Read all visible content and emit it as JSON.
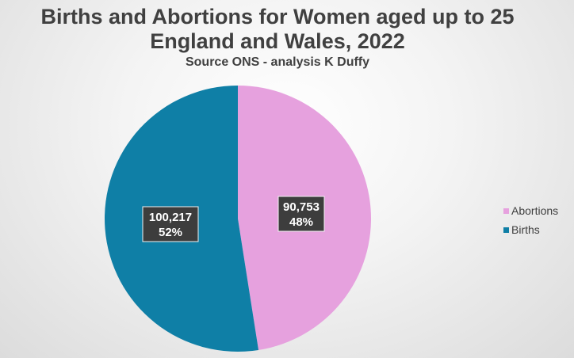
{
  "chart_data": {
    "type": "pie",
    "title": "Births and Abortions for Women aged up to 25",
    "title_line2": "England and Wales, 2022",
    "subtitle": "Source ONS - analysis K Duffy",
    "categories": [
      "Abortions",
      "Births"
    ],
    "values": [
      90753,
      100217
    ],
    "value_labels": [
      "90,753",
      "100,217"
    ],
    "percent_labels": [
      "48%",
      "52%"
    ],
    "colors": [
      "#e6a1de",
      "#0f7fa6"
    ],
    "legend_position": "right"
  }
}
